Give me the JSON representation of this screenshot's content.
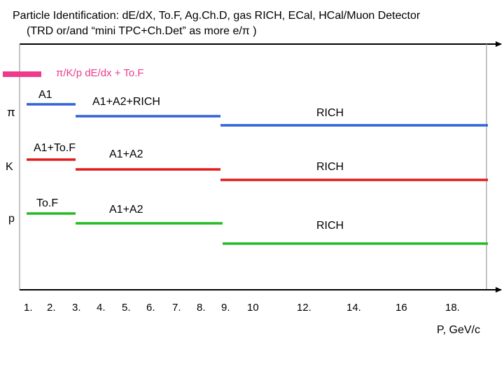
{
  "title": {
    "line1": "Particle Identification:  dE/dX, To.F, Ag.Ch.D, gas RICH, ECal, HCal/Muon Detector",
    "line2": "(TRD or/and “mini TPC+Ch.Det” as more e/π )"
  },
  "legend": {
    "label": "π/K/p  dE/dx + To.F",
    "color": "#ee3a8c"
  },
  "x_axis": {
    "ticks": [
      "1.",
      "2.",
      "3.",
      "4.",
      "5.",
      "6.",
      "7.",
      "8.",
      "9.",
      "10",
      "12.",
      "14.",
      "16",
      "18."
    ],
    "label": "P, GeV/c"
  },
  "particles": [
    {
      "name": "π",
      "color": "#2f63d8",
      "segments": [
        {
          "label": "A1",
          "from": 1,
          "to": 3.6
        },
        {
          "label": "A1+A2+RICH",
          "from": 3.6,
          "to": 8.8
        },
        {
          "label": "RICH",
          "from": 8.8,
          "to": 18.6
        }
      ]
    },
    {
      "name": "K",
      "color": "#e01c1c",
      "segments": [
        {
          "label": "A1+To.F",
          "from": 1,
          "to": 3
        },
        {
          "label": "A1+A2",
          "from": 3,
          "to": 8.8
        },
        {
          "label": "RICH",
          "from": 8.8,
          "to": 18.6
        }
      ]
    },
    {
      "name": "p",
      "color": "#22bb22",
      "segments": [
        {
          "label": "To.F",
          "from": 1,
          "to": 3
        },
        {
          "label": "A1+A2",
          "from": 3,
          "to": 9
        },
        {
          "label": "RICH",
          "from": 9,
          "to": 18.6
        }
      ]
    }
  ]
}
